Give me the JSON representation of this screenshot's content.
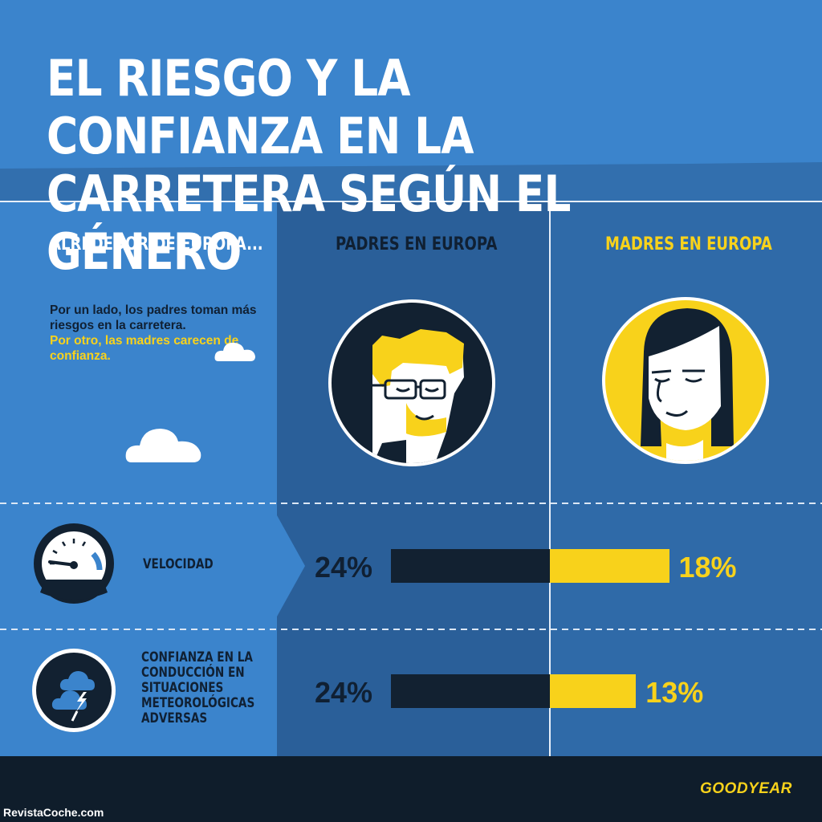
{
  "title_line1": "EL RIESGO Y LA CONFIANZA EN LA",
  "title_line2": "CARRETERA SEGÚN EL GÉNERO",
  "header_left": "ALREDEDOR DE EUROPA...",
  "header_fathers": "PADRES EN EUROPA",
  "header_mothers": "MADRES EN EUROPA",
  "intro_white": "Por un lado, los padres toman más riesgos en la carretera.",
  "intro_yellow": "Por otro, las madres carecen de confianza.",
  "colors": {
    "sky": "#3b84cc",
    "panel": "#2f6aa8",
    "dark": "#122131",
    "yellow": "#f8d21b"
  },
  "icons": [
    "cloud-icon",
    "speedometer-icon",
    "storm-cloud-icon",
    "father-avatar",
    "mother-avatar"
  ],
  "chart_data": {
    "type": "bar",
    "categories": [
      "VELOCIDAD",
      "CONFIANZA EN LA CONDUCCIÓN EN SITUACIONES METEOROLÓGICAS ADVERSAS"
    ],
    "series": [
      {
        "name": "PADRES EN EUROPA",
        "values": [
          24,
          24
        ],
        "labels": [
          "24%",
          "24%"
        ],
        "color": "#122131"
      },
      {
        "name": "MADRES EN EUROPA",
        "values": [
          18,
          13
        ],
        "labels": [
          "18%",
          "13%"
        ],
        "color": "#f8d21b"
      }
    ],
    "unit": "%"
  },
  "label_velocidad": "VELOCIDAD",
  "label_conf_lines": [
    "CONFIANZA EN LA",
    "CONDUCCIÓN EN",
    "SITUACIONES",
    "METEOROLÓGICAS",
    "ADVERSAS"
  ],
  "brand": "GOODYEAR",
  "watermark": "RevistaCoche.com"
}
